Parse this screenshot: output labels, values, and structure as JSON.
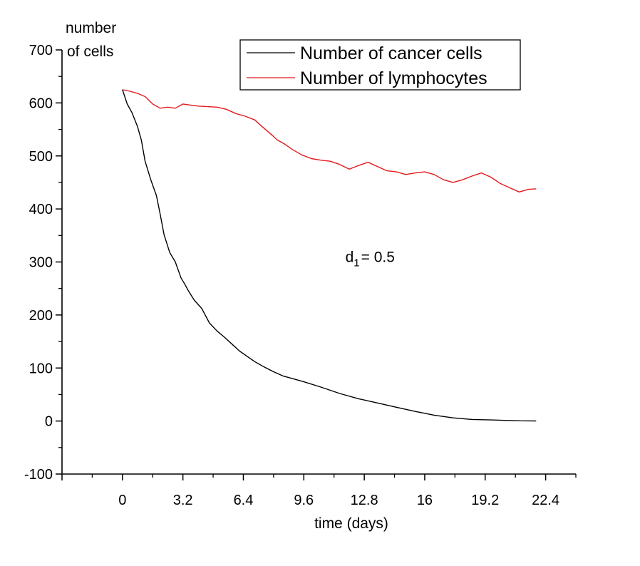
{
  "chart_data": {
    "type": "line",
    "title": "",
    "xlabel": "time (days)",
    "ylabel": [
      "number",
      "of cells"
    ],
    "xlim": [
      -3.2,
      24
    ],
    "ylim": [
      -100,
      700
    ],
    "x_ticks": [
      0,
      3.2,
      6.4,
      9.6,
      12.8,
      16,
      19.2,
      22.4
    ],
    "x_tick_labels": [
      "0",
      "3.2",
      "6.4",
      "9.6",
      "12.8",
      "16",
      "19.2",
      "22.4"
    ],
    "y_ticks": [
      -100,
      0,
      100,
      200,
      300,
      400,
      500,
      600,
      700
    ],
    "y_tick_labels": [
      "-100",
      "0",
      "100",
      "200",
      "300",
      "400",
      "500",
      "600",
      "700"
    ],
    "grid": false,
    "legend_position": "top-right",
    "annotation": {
      "main": "d",
      "sub": "1",
      "rest": "= 0.5",
      "x": 11.8,
      "y": 300
    },
    "series": [
      {
        "name": "Number of cancer cells",
        "color": "#000000",
        "x": [
          0,
          0.25,
          0.5,
          0.8,
          1.0,
          1.2,
          1.5,
          1.8,
          2.0,
          2.2,
          2.5,
          2.8,
          3.1,
          3.3,
          3.5,
          3.8,
          4.2,
          4.6,
          5.0,
          5.4,
          5.8,
          6.2,
          6.6,
          7.0,
          7.5,
          8.0,
          8.5,
          9.0,
          9.6,
          10.5,
          11.5,
          12.5,
          13.5,
          14.5,
          15.5,
          16.5,
          17.5,
          18.5,
          19.5,
          20.5,
          21.0,
          21.5,
          21.9
        ],
        "y": [
          625,
          598,
          582,
          555,
          530,
          490,
          455,
          425,
          390,
          352,
          318,
          300,
          270,
          258,
          245,
          228,
          212,
          185,
          170,
          158,
          145,
          132,
          122,
          112,
          102,
          93,
          85,
          80,
          74,
          64,
          52,
          42,
          34,
          26,
          18,
          11,
          6,
          3,
          2,
          1,
          0.5,
          0.3,
          0
        ]
      },
      {
        "name": "Number of lymphocytes",
        "color": "#e31a1c",
        "x": [
          0,
          0.4,
          0.8,
          1.2,
          1.6,
          2.0,
          2.4,
          2.8,
          3.2,
          3.6,
          4.0,
          4.5,
          5.0,
          5.5,
          6.0,
          6.5,
          7.0,
          7.4,
          7.8,
          8.2,
          8.6,
          9.0,
          9.5,
          10.0,
          10.5,
          11.0,
          11.5,
          12.0,
          12.5,
          13.0,
          13.5,
          14.0,
          14.5,
          15.0,
          15.5,
          16.0,
          16.5,
          17.0,
          17.5,
          18.0,
          18.5,
          19.0,
          19.5,
          20.0,
          20.5,
          21.0,
          21.5,
          21.9
        ],
        "y": [
          625,
          622,
          618,
          612,
          598,
          590,
          592,
          590,
          598,
          596,
          594,
          593,
          592,
          588,
          580,
          575,
          568,
          555,
          543,
          530,
          522,
          512,
          502,
          495,
          492,
          490,
          484,
          475,
          482,
          488,
          480,
          472,
          470,
          465,
          468,
          470,
          465,
          455,
          450,
          455,
          462,
          468,
          460,
          448,
          440,
          432,
          437,
          438
        ]
      }
    ]
  }
}
